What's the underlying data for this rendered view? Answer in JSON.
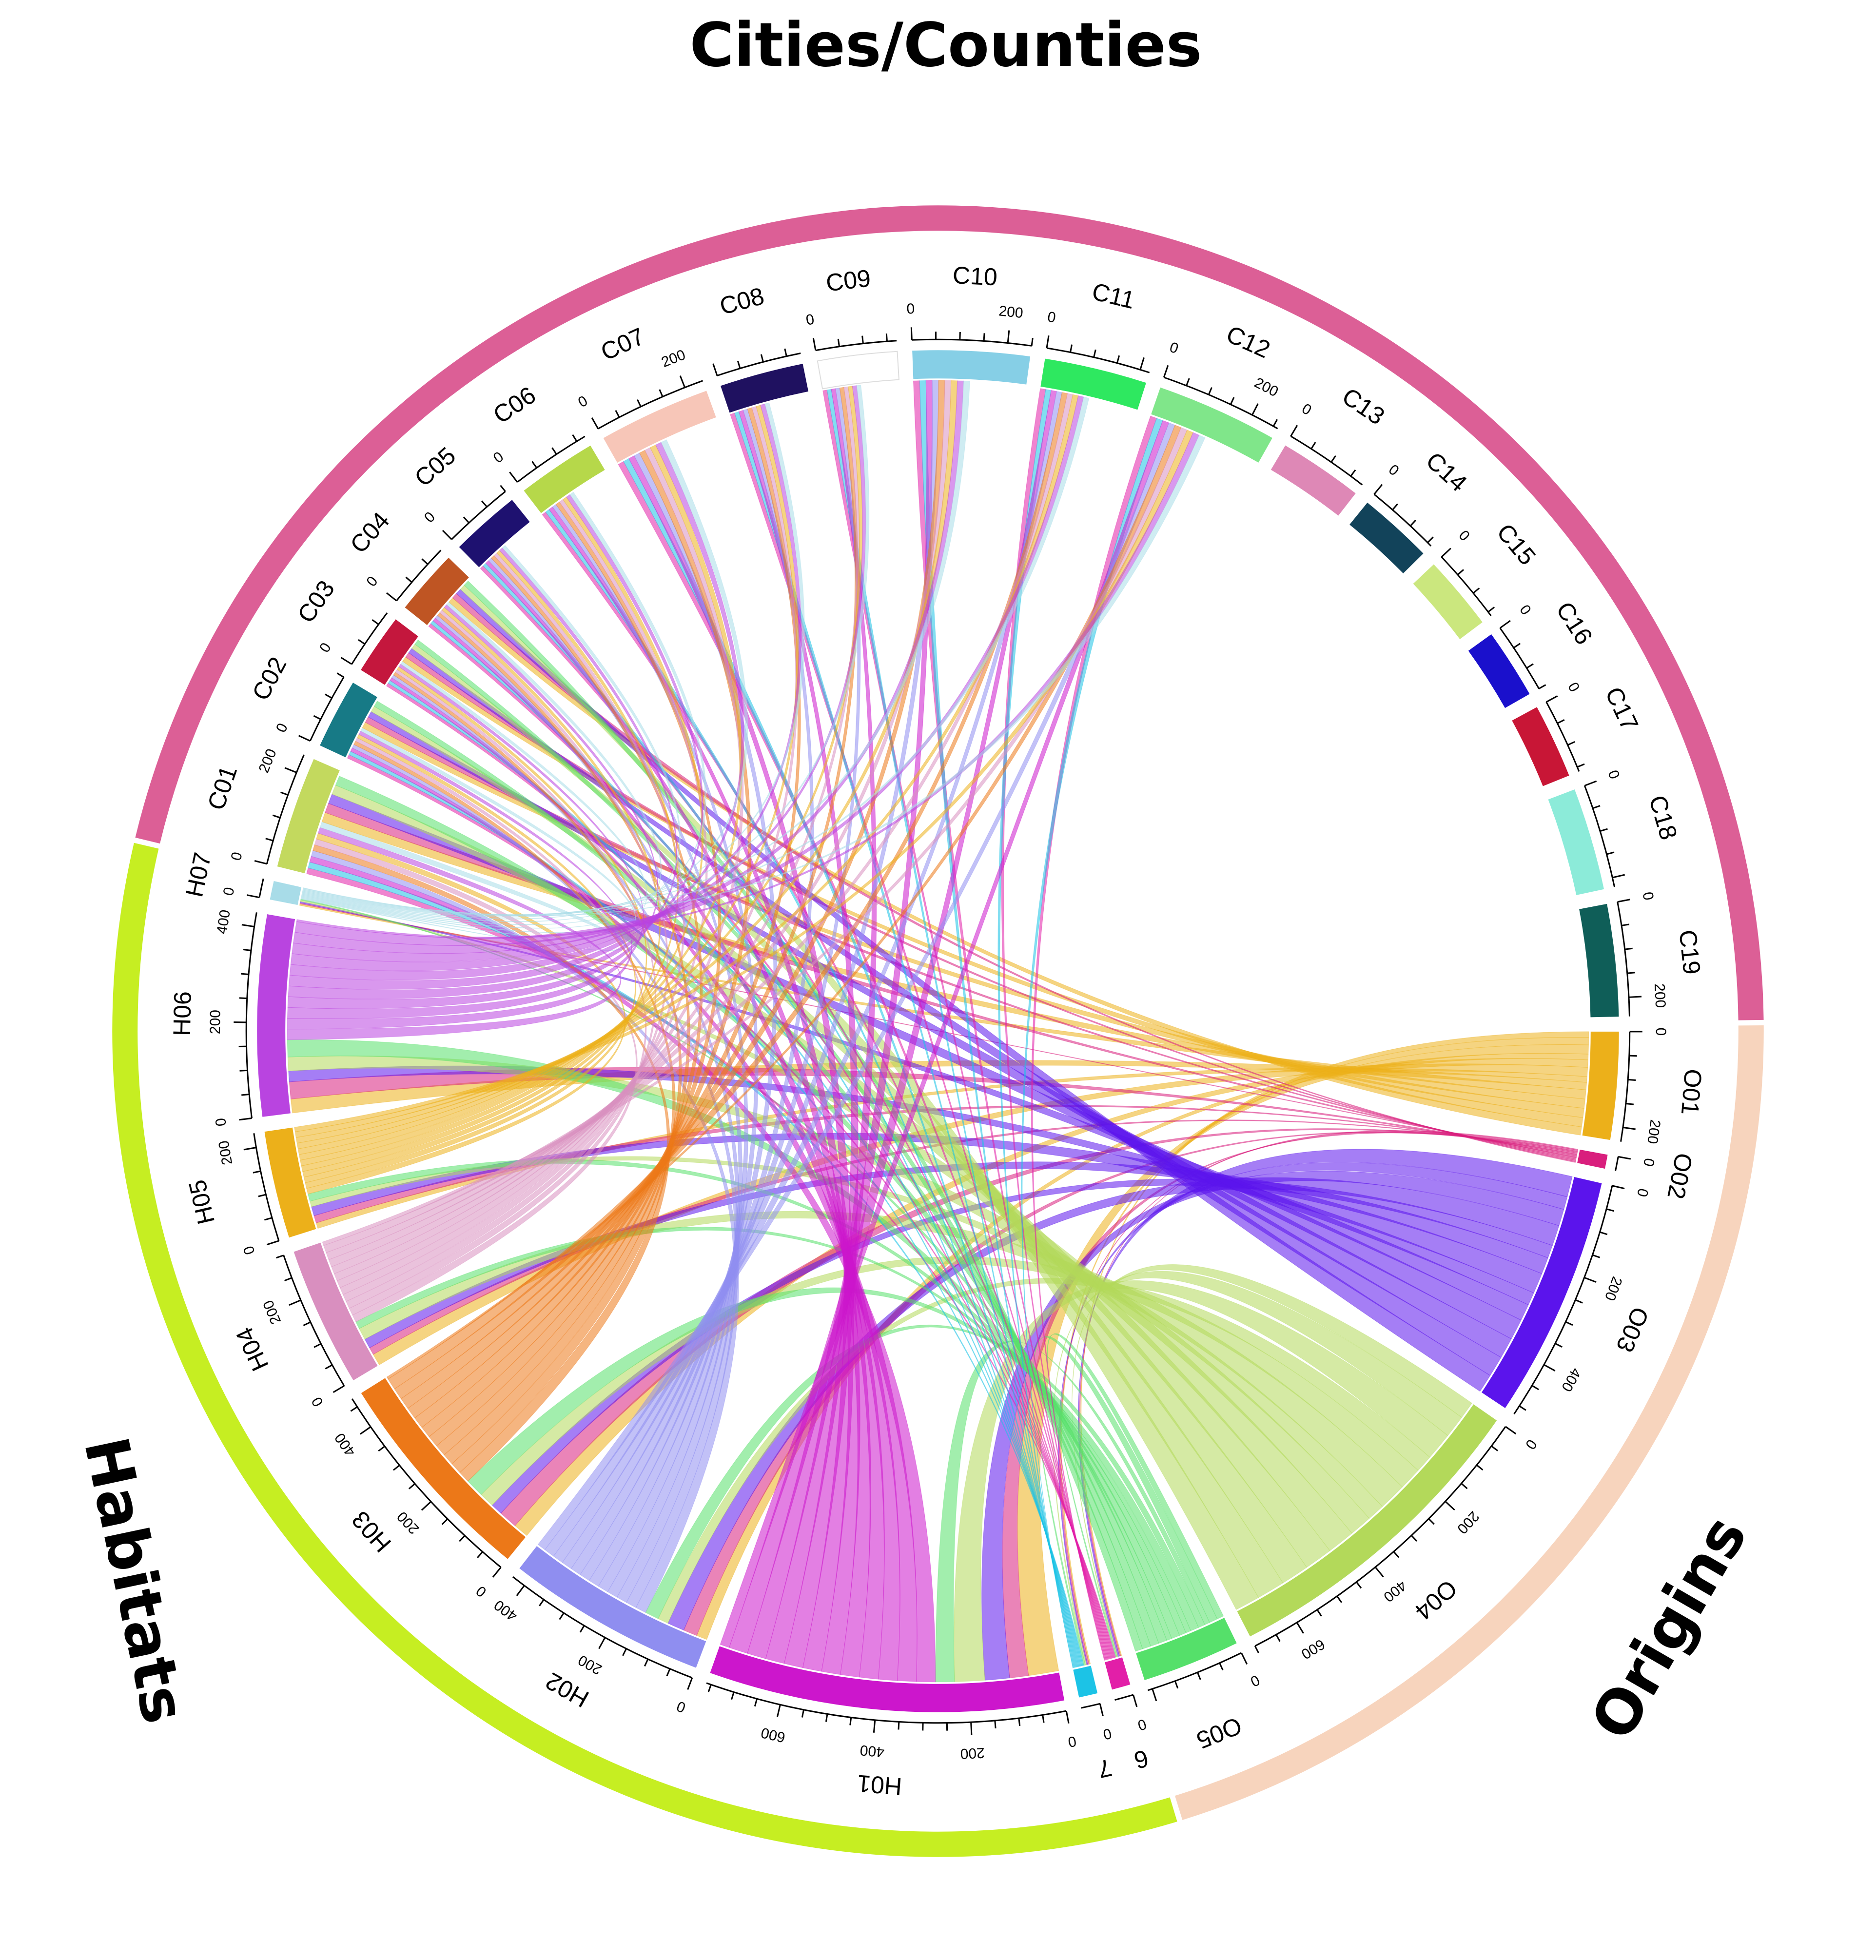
{
  "colors": {
    "cities_group": "#dc5f96",
    "habitats_group": "#c6ee22",
    "origins_group": "#f7d4bd"
  },
  "groups": [
    {
      "id": "cities",
      "title": "Cities/Counties",
      "color": "#dc5f96"
    },
    {
      "id": "habitats",
      "title": "Habitats",
      "color": "#c6ee22"
    },
    {
      "id": "origins",
      "title": "Origins",
      "color": "#f7d4bd"
    }
  ],
  "chart_data": {
    "type": "chord",
    "sectors": [
      {
        "label": "C01",
        "group": "cities",
        "value": 240,
        "color": "#c3d95e",
        "ticks": [
          "0",
          "200"
        ]
      },
      {
        "label": "C02",
        "group": "cities",
        "value": 150,
        "color": "#177a86",
        "ticks": [
          "0"
        ]
      },
      {
        "label": "C03",
        "group": "cities",
        "value": 130,
        "color": "#c4173d",
        "ticks": [
          "0"
        ]
      },
      {
        "label": "C04",
        "group": "cities",
        "value": 140,
        "color": "#bf5523",
        "ticks": [
          "0"
        ]
      },
      {
        "label": "C05",
        "group": "cities",
        "value": 150,
        "color": "#1e1170",
        "ticks": [
          "0"
        ]
      },
      {
        "label": "C06",
        "group": "cities",
        "value": 170,
        "color": "#b6d84a",
        "ticks": [
          "0"
        ]
      },
      {
        "label": "C07",
        "group": "cities",
        "value": 240,
        "color": "#f7c6b8",
        "ticks": [
          "0",
          "200"
        ]
      },
      {
        "label": "C08",
        "group": "cities",
        "value": 180,
        "color": "#1f1160",
        "ticks": []
      },
      {
        "label": "C09",
        "group": "cities",
        "value": 170,
        "color": "#ffffff",
        "ticks": [
          "0"
        ]
      },
      {
        "label": "C10",
        "group": "cities",
        "value": 250,
        "color": "#86cfe6",
        "ticks": [
          "0",
          "200"
        ]
      },
      {
        "label": "C11",
        "group": "cities",
        "value": 220,
        "color": "#2ee860",
        "ticks": [
          "0"
        ]
      },
      {
        "label": "C12",
        "group": "cities",
        "value": 260,
        "color": "#80e68a",
        "ticks": [
          "0",
          "200"
        ]
      },
      {
        "label": "C13",
        "group": "cities",
        "value": 180,
        "color": "#de88b6",
        "ticks": [
          "0"
        ]
      },
      {
        "label": "C14",
        "group": "cities",
        "value": 160,
        "color": "#12435a",
        "ticks": [
          "0"
        ]
      },
      {
        "label": "C15",
        "group": "cities",
        "value": 160,
        "color": "#cbe77e",
        "ticks": [
          "0"
        ]
      },
      {
        "label": "C16",
        "group": "cities",
        "value": 150,
        "color": "#1a10cc",
        "ticks": [
          "0"
        ]
      },
      {
        "label": "C17",
        "group": "cities",
        "value": 160,
        "color": "#c81636",
        "ticks": [
          "0"
        ]
      },
      {
        "label": "C18",
        "group": "cities",
        "value": 220,
        "color": "#8cebd9",
        "ticks": [
          "0"
        ]
      },
      {
        "label": "C19",
        "group": "cities",
        "value": 240,
        "color": "#0f5e58",
        "ticks": [
          "0",
          "200"
        ]
      },
      {
        "label": "O01",
        "group": "origins",
        "value": 230,
        "color": "#ecb01a",
        "ticks": [
          "0",
          "200"
        ]
      },
      {
        "label": "O02",
        "group": "origins",
        "value": 30,
        "color": "#d91f7d",
        "ticks": [
          "0"
        ]
      },
      {
        "label": "O03",
        "group": "origins",
        "value": 520,
        "color": "#5b14ec",
        "ticks": [
          "0",
          "200",
          "400"
        ]
      },
      {
        "label": "O04",
        "group": "origins",
        "value": 700,
        "color": "#b3d95a",
        "ticks": [
          "0",
          "200",
          "400",
          "600"
        ]
      },
      {
        "label": "O05",
        "group": "origins",
        "value": 210,
        "color": "#55e06a",
        "ticks": [
          "0"
        ]
      },
      {
        "label": "6",
        "group": "habitats",
        "value": 40,
        "color": "#e21fa8",
        "ticks": [
          "0"
        ]
      },
      {
        "label": "7",
        "group": "habitats",
        "value": 40,
        "color": "#1cc3e6",
        "ticks": [
          "0"
        ]
      },
      {
        "label": "H01",
        "group": "habitats",
        "value": 760,
        "color": "#cc16cc",
        "ticks": [
          "0",
          "200",
          "400",
          "600"
        ]
      },
      {
        "label": "H02",
        "group": "habitats",
        "value": 430,
        "color": "#8f8ef0",
        "ticks": [
          "0",
          "200",
          "400"
        ]
      },
      {
        "label": "H03",
        "group": "habitats",
        "value": 470,
        "color": "#ec7818",
        "ticks": [
          "0",
          "200",
          "400"
        ]
      },
      {
        "label": "H04",
        "group": "habitats",
        "value": 300,
        "color": "#d98fbf",
        "ticks": [
          "0",
          "200"
        ]
      },
      {
        "label": "H05",
        "group": "habitats",
        "value": 230,
        "color": "#ecb01a",
        "ticks": [
          "0",
          "200"
        ]
      },
      {
        "label": "H06",
        "group": "habitats",
        "value": 430,
        "color": "#b944e0",
        "ticks": [
          "0",
          "200",
          "400"
        ]
      },
      {
        "label": "H07",
        "group": "habitats",
        "value": 40,
        "color": "#a8dce8",
        "ticks": [
          "0"
        ]
      }
    ]
  }
}
